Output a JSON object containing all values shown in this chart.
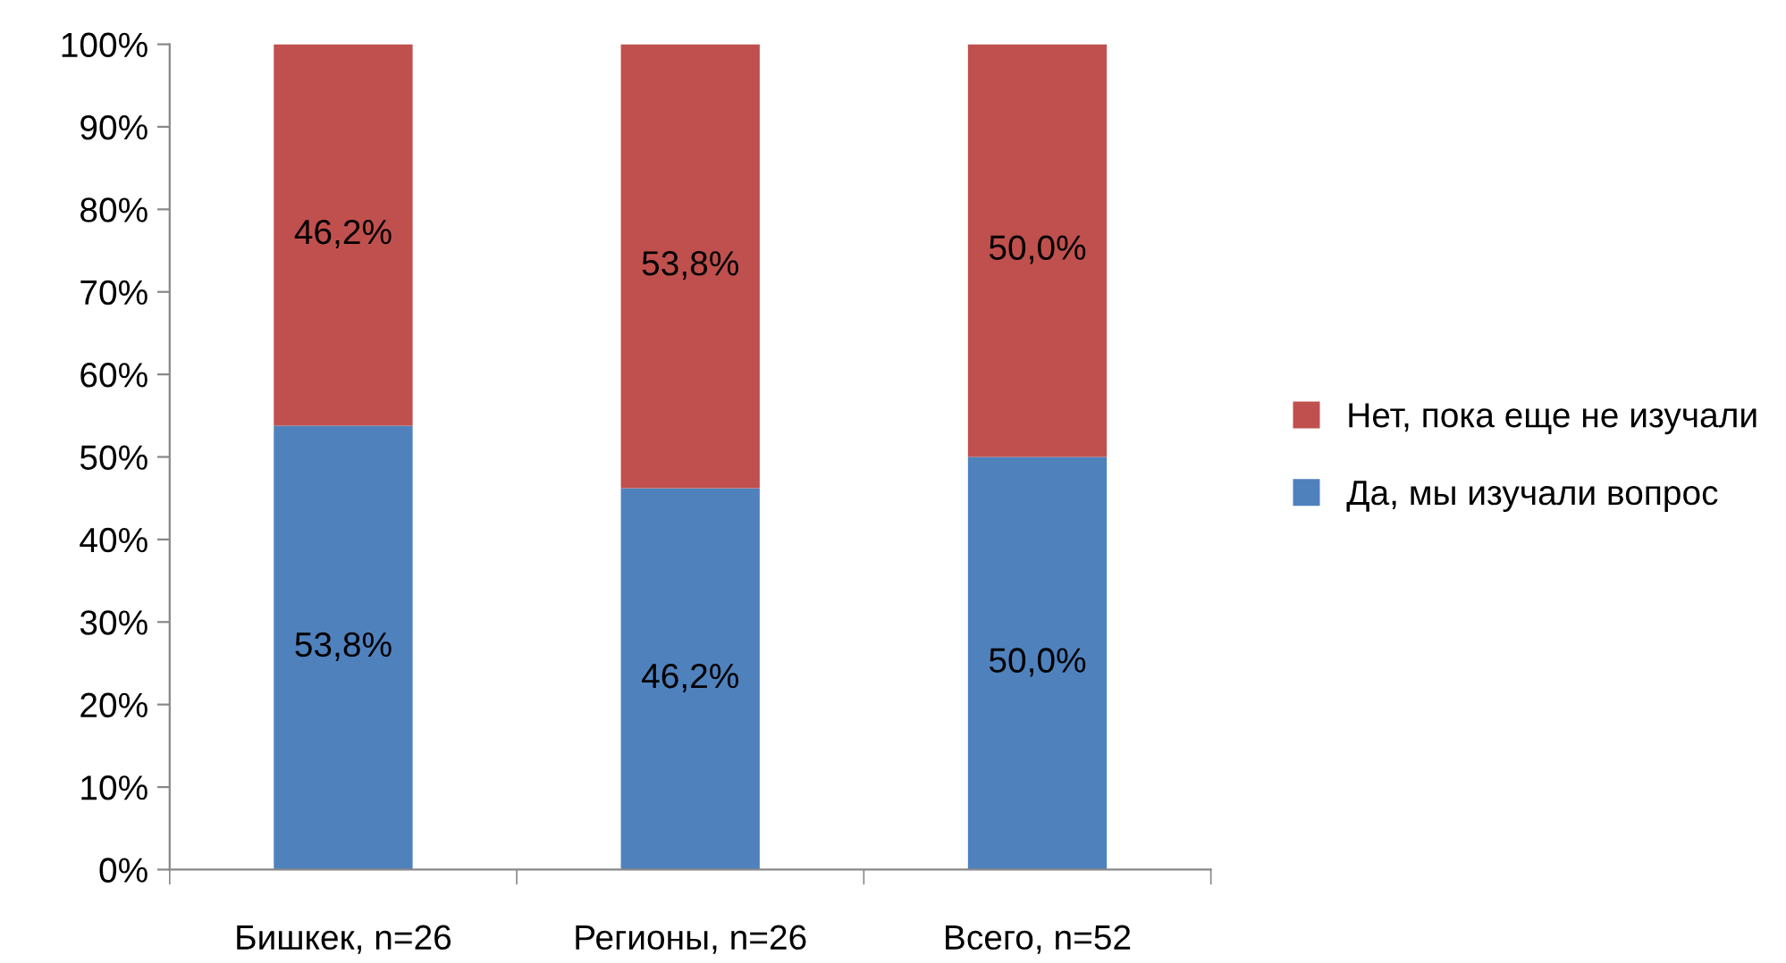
{
  "chart_data": {
    "type": "bar",
    "stacked": true,
    "categories": [
      "Бишкек, n=26",
      "Регионы, n=26",
      "Всего, n=52"
    ],
    "series": [
      {
        "name": "Да, мы изучали вопрос",
        "color": "#4f81bd",
        "values": [
          53.8,
          46.2,
          50.0
        ],
        "value_labels": [
          "53,8%",
          "46,2%",
          "50,0%"
        ]
      },
      {
        "name": "Нет, пока еще не изучали",
        "color": "#c0504d",
        "values": [
          46.2,
          53.8,
          50.0
        ],
        "value_labels": [
          "46,2%",
          "53,8%",
          "50,0%"
        ]
      }
    ],
    "ylim": [
      0,
      100
    ],
    "yticks": [
      {
        "value": 0,
        "label": "0%"
      },
      {
        "value": 10,
        "label": "10%"
      },
      {
        "value": 20,
        "label": "20%"
      },
      {
        "value": 30,
        "label": "30%"
      },
      {
        "value": 40,
        "label": "40%"
      },
      {
        "value": 50,
        "label": "50%"
      },
      {
        "value": 60,
        "label": "60%"
      },
      {
        "value": 70,
        "label": "70%"
      },
      {
        "value": 80,
        "label": "80%"
      },
      {
        "value": 90,
        "label": "90%"
      },
      {
        "value": 100,
        "label": "100%"
      }
    ],
    "grid": false,
    "legend": "right"
  }
}
